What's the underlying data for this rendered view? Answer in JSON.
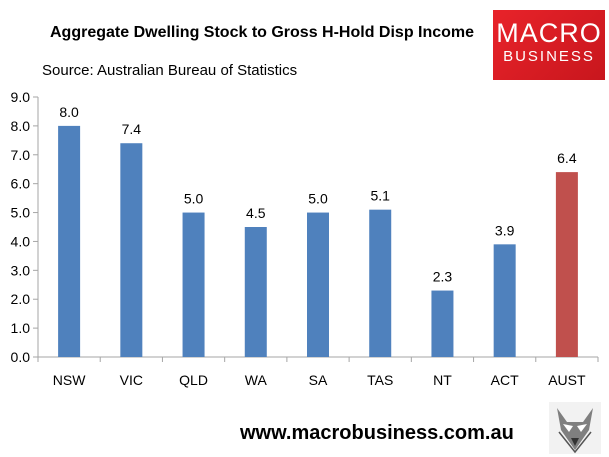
{
  "header": {
    "title": "Aggregate Dwelling Stock to Gross H-Hold Disp Income",
    "subtitle": "Source: Australian Bureau of Statistics"
  },
  "logo": {
    "line1": "MACRO",
    "line2": "BUSINESS"
  },
  "footer": {
    "url": "www.macrobusiness.com.au"
  },
  "colors": {
    "bar": "#4f81bd",
    "highlight": "#c0504d",
    "axis": "#a6a6a6"
  },
  "chart_data": {
    "type": "bar",
    "categories": [
      "NSW",
      "VIC",
      "QLD",
      "WA",
      "SA",
      "TAS",
      "NT",
      "ACT",
      "AUST"
    ],
    "values": [
      8.0,
      7.4,
      5.0,
      4.5,
      5.0,
      5.1,
      2.3,
      3.9,
      6.4
    ],
    "data_labels": [
      "8.0",
      "7.4",
      "5.0",
      "4.5",
      "5.0",
      "5.1",
      "2.3",
      "3.9",
      "6.4"
    ],
    "highlight_category": "AUST",
    "ylim": [
      0,
      9
    ],
    "yticks": [
      "0.0",
      "1.0",
      "2.0",
      "3.0",
      "4.0",
      "5.0",
      "6.0",
      "7.0",
      "8.0",
      "9.0"
    ],
    "grid": false,
    "legend": "none"
  }
}
